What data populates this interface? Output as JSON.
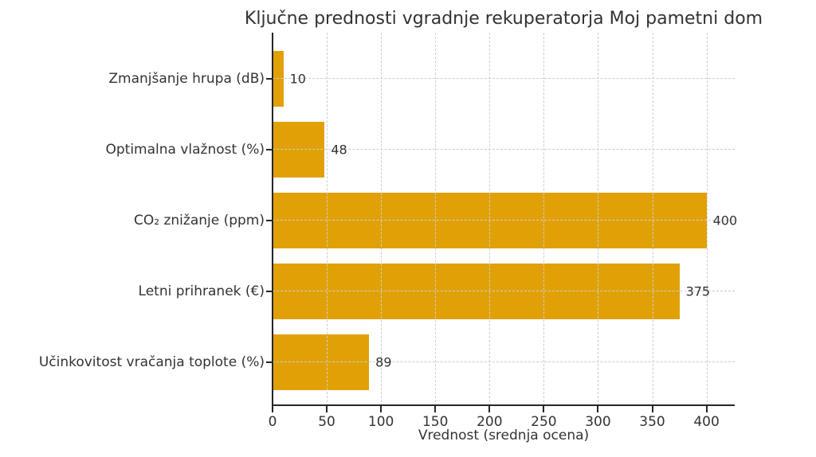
{
  "chart_data": {
    "type": "bar",
    "orientation": "horizontal",
    "title": "Ključne prednosti vgradnje rekuperatorja Moj pametni dom",
    "categories": [
      "Zmanjšanje hrupa (dB)",
      "Optimalna vlažnost (%)",
      "CO₂ znižanje (ppm)",
      "Letni prihranek (€)",
      "Učinkovitost vračanja toplote (%)"
    ],
    "values": [
      10,
      48,
      400,
      375,
      89
    ],
    "xlabel": "Vrednost (srednja ocena)",
    "ylabel": "",
    "xticks": [
      0,
      50,
      100,
      150,
      200,
      250,
      300,
      350,
      400
    ],
    "xlim": [
      0,
      426
    ],
    "grid": {
      "on": true,
      "style": "dashed",
      "color": "#cccccc"
    },
    "legend_position": "none",
    "bar_color": "#e1a106",
    "text_color": "#333333",
    "spine_color": "#262626",
    "background_color": "#ffffff"
  }
}
